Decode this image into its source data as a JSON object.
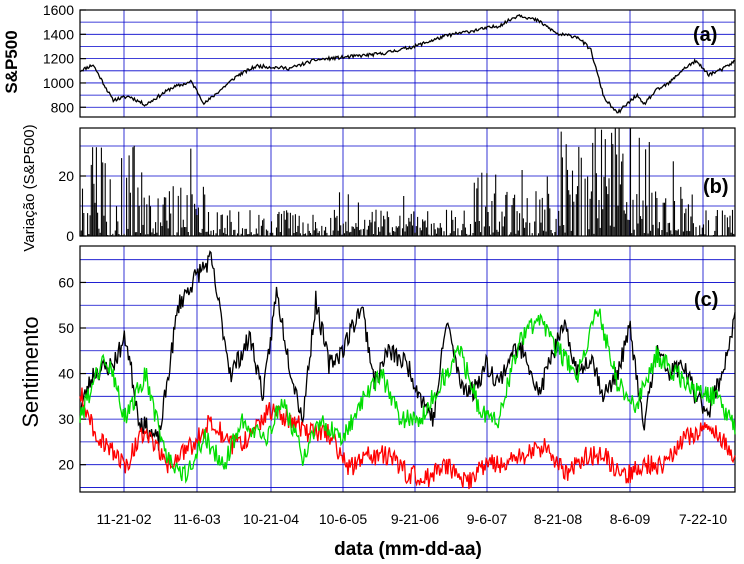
{
  "chart_data": [
    {
      "panel": "a",
      "panel_label": "(a)",
      "type": "line",
      "ylabel": "S&P500",
      "ylim": [
        720,
        1600
      ],
      "yticks": [
        800,
        1000,
        1200,
        1400,
        1600
      ],
      "grid": true,
      "series": [
        {
          "color": "#000000",
          "x": [
            0.0,
            0.02,
            0.05,
            0.075,
            0.1,
            0.14,
            0.17,
            0.19,
            0.24,
            0.27,
            0.32,
            0.36,
            0.42,
            0.46,
            0.51,
            0.56,
            0.6,
            0.64,
            0.67,
            0.7,
            0.73,
            0.76,
            0.78,
            0.8,
            0.82,
            0.85,
            0.86,
            0.88,
            0.9,
            0.92,
            0.94,
            0.96,
            0.98,
            1.0
          ],
          "values": [
            1100,
            1150,
            860,
            890,
            820,
            960,
            1010,
            830,
            1060,
            1140,
            1120,
            1190,
            1220,
            1240,
            1300,
            1390,
            1430,
            1470,
            1560,
            1510,
            1400,
            1380,
            1270,
            880,
            750,
            900,
            820,
            940,
            1000,
            1110,
            1180,
            1070,
            1110,
            1180
          ]
        }
      ]
    },
    {
      "panel": "b",
      "panel_label": "(b)",
      "type": "bar",
      "ylabel": "Variação (S&P500)",
      "ylim": [
        0,
        36
      ],
      "yticks": [
        0,
        20
      ],
      "grid": true
    },
    {
      "panel": "c",
      "panel_label": "(c)",
      "type": "line",
      "ylabel": "Sentimento",
      "ylim": [
        14,
        68
      ],
      "yticks": [
        20,
        30,
        40,
        50,
        60
      ],
      "grid": true,
      "series": [
        {
          "color": "#000000",
          "x": [
            0.0,
            0.02,
            0.05,
            0.07,
            0.09,
            0.12,
            0.15,
            0.18,
            0.2,
            0.23,
            0.26,
            0.28,
            0.3,
            0.32,
            0.34,
            0.36,
            0.38,
            0.4,
            0.43,
            0.45,
            0.47,
            0.5,
            0.52,
            0.54,
            0.56,
            0.58,
            0.6,
            0.62,
            0.64,
            0.66,
            0.68,
            0.7,
            0.72,
            0.74,
            0.76,
            0.78,
            0.8,
            0.82,
            0.84,
            0.86,
            0.88,
            0.9,
            0.92,
            0.94,
            0.96,
            0.98,
            1.0
          ],
          "values": [
            32,
            40,
            42,
            48,
            30,
            25,
            55,
            62,
            65,
            40,
            48,
            35,
            58,
            42,
            30,
            56,
            42,
            45,
            55,
            38,
            45,
            42,
            35,
            30,
            52,
            38,
            36,
            42,
            38,
            45,
            45,
            35,
            44,
            50,
            40,
            44,
            35,
            40,
            50,
            28,
            45,
            40,
            42,
            35,
            32,
            40,
            52
          ]
        },
        {
          "color": "#ff0000",
          "x": [
            0.0,
            0.02,
            0.04,
            0.07,
            0.1,
            0.13,
            0.17,
            0.2,
            0.23,
            0.26,
            0.29,
            0.32,
            0.35,
            0.38,
            0.41,
            0.44,
            0.47,
            0.5,
            0.53,
            0.56,
            0.59,
            0.62,
            0.65,
            0.68,
            0.71,
            0.74,
            0.77,
            0.8,
            0.83,
            0.86,
            0.89,
            0.92,
            0.95,
            0.98,
            1.0
          ],
          "values": [
            36,
            28,
            24,
            20,
            28,
            20,
            24,
            30,
            24,
            26,
            32,
            30,
            27,
            27,
            19,
            22,
            22,
            18,
            17,
            20,
            16,
            20,
            20,
            22,
            24,
            18,
            22,
            22,
            17,
            20,
            20,
            25,
            28,
            26,
            22
          ]
        },
        {
          "color": "#00dd00",
          "x": [
            0.0,
            0.02,
            0.04,
            0.07,
            0.1,
            0.13,
            0.16,
            0.19,
            0.22,
            0.25,
            0.28,
            0.31,
            0.34,
            0.37,
            0.4,
            0.43,
            0.46,
            0.49,
            0.52,
            0.55,
            0.58,
            0.61,
            0.64,
            0.67,
            0.7,
            0.73,
            0.76,
            0.79,
            0.82,
            0.85,
            0.88,
            0.91,
            0.94,
            0.97,
            1.0
          ],
          "values": [
            30,
            38,
            44,
            30,
            40,
            22,
            18,
            26,
            20,
            30,
            25,
            34,
            22,
            30,
            25,
            34,
            40,
            30,
            30,
            38,
            45,
            32,
            30,
            47,
            52,
            45,
            40,
            55,
            38,
            33,
            44,
            40,
            36,
            35,
            28
          ]
        }
      ]
    }
  ],
  "x_axis": {
    "label": "data (mm-dd-aa)",
    "ticks": [
      "11-21-02",
      "11-6-03",
      "10-21-04",
      "10-6-05",
      "9-21-06",
      "9-6-07",
      "8-21-08",
      "8-6-09",
      "7-22-10"
    ]
  }
}
